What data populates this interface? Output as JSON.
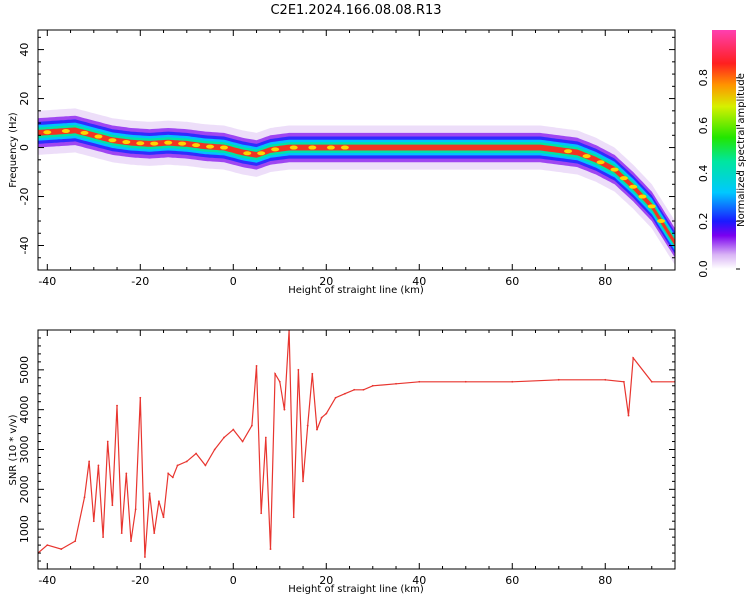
{
  "title": "C2E1.2024.166.08.08.R13",
  "colors": {
    "snr_line": "#e8352f",
    "plot_bg": "#ffffff",
    "ridge": "#ff2a1a"
  },
  "chart_data": [
    {
      "type": "heatmap",
      "xlabel": "Height of straight line (km)",
      "ylabel": "Frequency (Hz)",
      "xlim": [
        -42,
        95
      ],
      "ylim": [
        -50,
        48
      ],
      "xticks": [
        "-40",
        "-20",
        "0",
        "20",
        "40",
        "60",
        "80"
      ],
      "yticks": [
        "40",
        "20",
        "0",
        "-20",
        "-40"
      ],
      "colorbar": {
        "label": "Normalized spectral amplitude",
        "range": [
          0,
          1
        ],
        "ticks": [
          "0.0",
          "0.2",
          "0.4",
          "0.6",
          "0.8"
        ]
      },
      "ridge": {
        "x": [
          -42,
          -38,
          -34,
          -30,
          -26,
          -22,
          -18,
          -14,
          -10,
          -6,
          -2,
          2,
          5,
          8,
          12,
          16,
          20,
          25,
          30,
          40,
          50,
          60,
          66,
          70,
          74,
          78,
          82,
          86,
          90,
          95
        ],
        "y": [
          6,
          6.5,
          7,
          5,
          3,
          2,
          1.5,
          2,
          1.5,
          0.5,
          0,
          -2,
          -3,
          -1,
          0,
          0,
          0,
          0,
          0,
          0,
          0,
          0,
          0,
          -1,
          -2,
          -5,
          -9,
          -16,
          -24,
          -39
        ]
      }
    },
    {
      "type": "line",
      "xlabel": "Height of straight line (km)",
      "ylabel": "SNR (10 * v/v)",
      "xlim": [
        -42,
        95
      ],
      "ylim": [
        0,
        6000
      ],
      "xticks": [
        "-40",
        "-20",
        "0",
        "20",
        "40",
        "60",
        "80"
      ],
      "yticks": [
        "5000",
        "4000",
        "3000",
        "2000",
        "1000"
      ],
      "series": [
        {
          "x": [
            -42,
            -40,
            -37,
            -34,
            -32,
            -31,
            -30,
            -29,
            -28,
            -27,
            -26,
            -25,
            -24,
            -23,
            -22,
            -21,
            -20,
            -19,
            -18,
            -17,
            -16,
            -15,
            -14,
            -13,
            -12,
            -10,
            -8,
            -6,
            -4,
            -2,
            0,
            2,
            4,
            5,
            6,
            7,
            8,
            9,
            10,
            11,
            12,
            13,
            14,
            15,
            16,
            17,
            18,
            19,
            20,
            22,
            24,
            26,
            28,
            30,
            35,
            40,
            50,
            60,
            70,
            80,
            84,
            85,
            86,
            90,
            95
          ],
          "y": [
            400,
            600,
            500,
            700,
            1800,
            2700,
            1200,
            2600,
            800,
            3200,
            1600,
            4100,
            900,
            2400,
            700,
            1500,
            4300,
            300,
            1900,
            900,
            1700,
            1300,
            2400,
            2300,
            2600,
            2700,
            2900,
            2600,
            3000,
            3300,
            3500,
            3200,
            3600,
            5100,
            1400,
            3300,
            500,
            4900,
            4700,
            4000,
            6000,
            1300,
            5000,
            2200,
            3600,
            4900,
            3500,
            3800,
            3900,
            4300,
            4400,
            4500,
            4500,
            4600,
            4650,
            4700,
            4700,
            4700,
            4750,
            4750,
            4700,
            3850,
            5300,
            4700,
            4700
          ]
        }
      ]
    }
  ]
}
